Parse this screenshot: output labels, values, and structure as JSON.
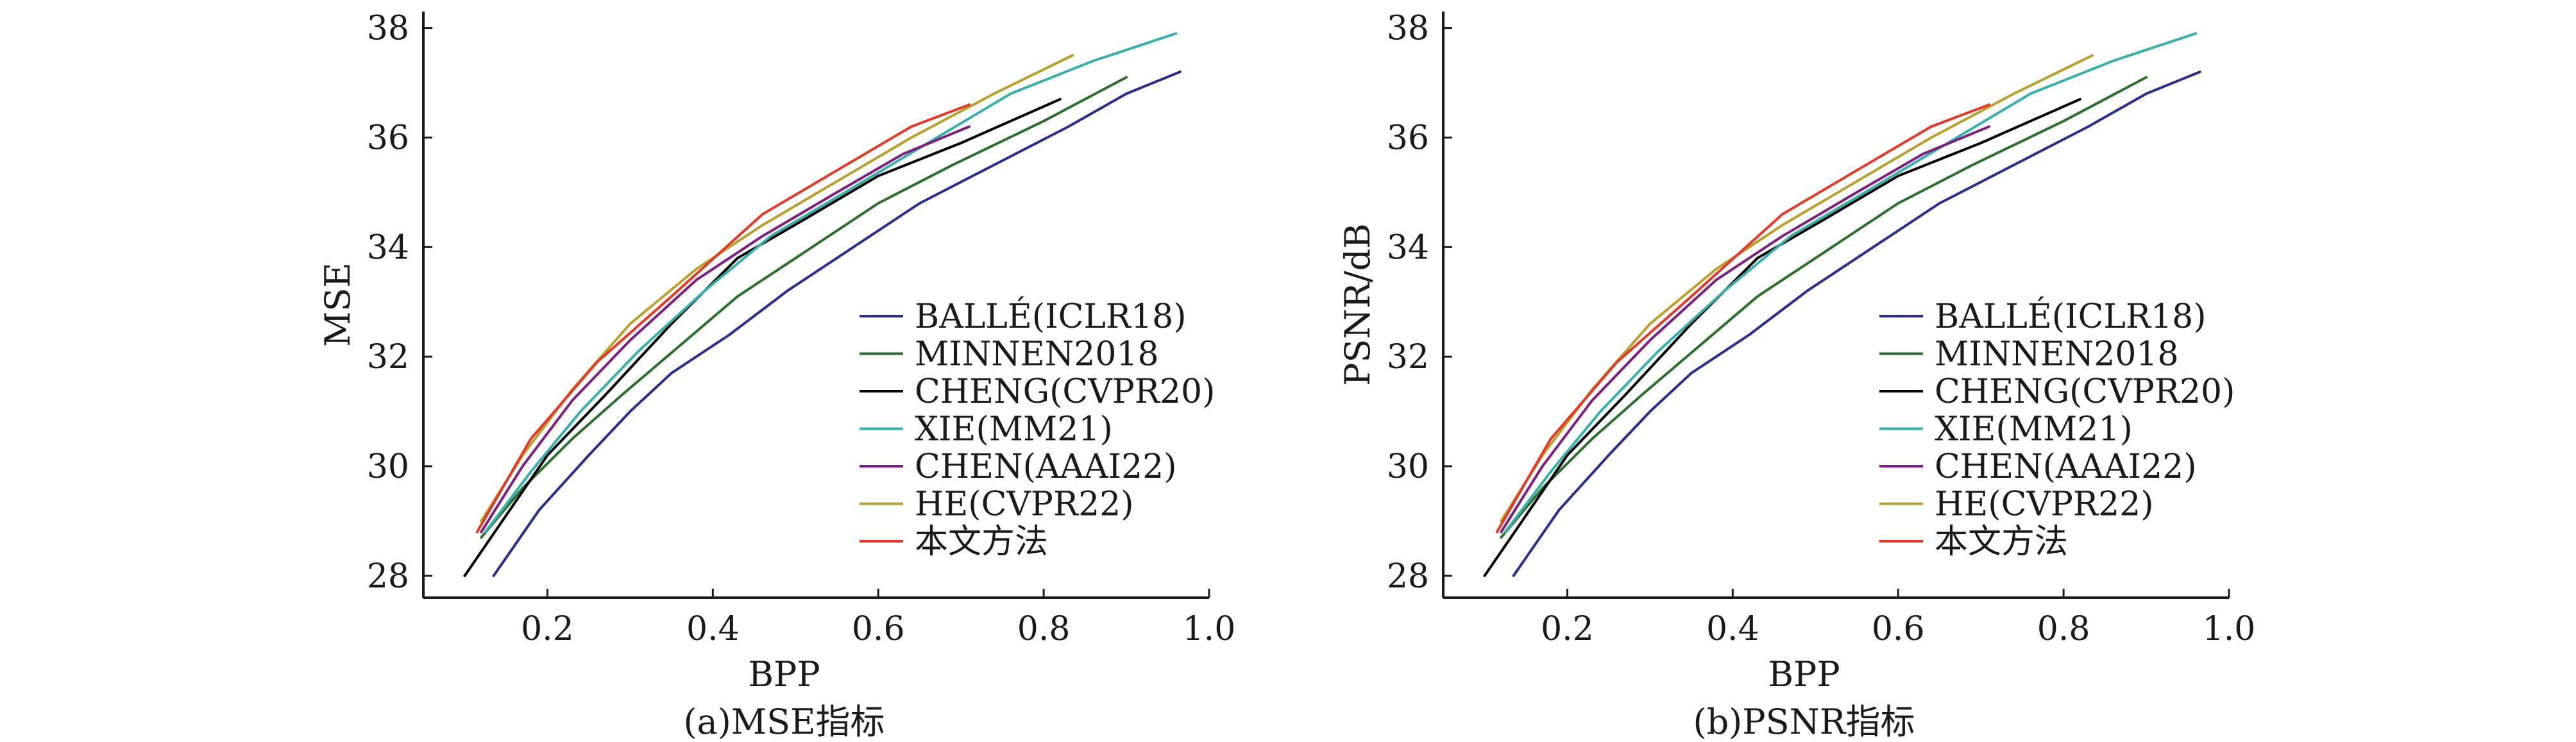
{
  "chart_data": [
    {
      "type": "line",
      "caption": "(a)MSE指标",
      "xlabel": "BPP",
      "ylabel": "MSE",
      "xlim": [
        0.05,
        1.0
      ],
      "ylim": [
        27.6,
        38.3
      ],
      "xticks": [
        0.2,
        0.4,
        0.6,
        0.8,
        1.0
      ],
      "xtick_labels": [
        "0.2",
        "0.4",
        "0.6",
        "0.8",
        "1.0"
      ],
      "yticks": [
        28,
        30,
        32,
        34,
        36,
        38
      ],
      "ytick_labels": [
        "28",
        "30",
        "32",
        "34",
        "36",
        "38"
      ],
      "grid": false,
      "legend_position": "bottom-right",
      "series": [
        {
          "name": "BALLÉ(ICLR18)",
          "color": "#2b2d8c",
          "x": [
            0.135,
            0.19,
            0.25,
            0.3,
            0.35,
            0.42,
            0.49,
            0.57,
            0.65,
            0.74,
            0.83,
            0.9,
            0.965
          ],
          "y": [
            28.0,
            29.2,
            30.2,
            31.0,
            31.7,
            32.4,
            33.2,
            34.0,
            34.8,
            35.5,
            36.2,
            36.8,
            37.2
          ]
        },
        {
          "name": "MINNEN2018",
          "color": "#2d6e2d",
          "x": [
            0.12,
            0.17,
            0.23,
            0.29,
            0.36,
            0.43,
            0.51,
            0.6,
            0.69,
            0.8,
            0.9
          ],
          "y": [
            28.7,
            29.6,
            30.5,
            31.3,
            32.2,
            33.1,
            33.9,
            34.8,
            35.5,
            36.3,
            37.1
          ]
        },
        {
          "name": "CHENG(CVPR20)",
          "color": "#000000",
          "x": [
            0.1,
            0.15,
            0.2,
            0.27,
            0.35,
            0.43,
            0.51,
            0.6,
            0.7,
            0.82
          ],
          "y": [
            28.0,
            29.1,
            30.2,
            31.3,
            32.6,
            33.8,
            34.5,
            35.3,
            35.9,
            36.7
          ]
        },
        {
          "name": "XIE(MM21)",
          "color": "#3aaeaa",
          "x": [
            0.125,
            0.18,
            0.24,
            0.31,
            0.39,
            0.47,
            0.56,
            0.66,
            0.76,
            0.86,
            0.96
          ],
          "y": [
            28.8,
            29.9,
            31.0,
            32.1,
            33.2,
            34.2,
            35.0,
            35.9,
            36.8,
            37.4,
            37.9
          ]
        },
        {
          "name": "CHEN(AAAI22)",
          "color": "#7a2080",
          "x": [
            0.12,
            0.17,
            0.23,
            0.3,
            0.38,
            0.46,
            0.55,
            0.63,
            0.71
          ],
          "y": [
            28.8,
            30.0,
            31.2,
            32.3,
            33.4,
            34.2,
            35.0,
            35.7,
            36.2
          ]
        },
        {
          "name": "HE(CVPR22)",
          "color": "#b8a030",
          "x": [
            0.12,
            0.17,
            0.23,
            0.3,
            0.38,
            0.46,
            0.55,
            0.64,
            0.74,
            0.835
          ],
          "y": [
            29.0,
            30.2,
            31.4,
            32.6,
            33.6,
            34.4,
            35.2,
            36.0,
            36.8,
            37.5
          ]
        },
        {
          "name": "本文方法",
          "color": "#e03a2a",
          "x": [
            0.115,
            0.18,
            0.26,
            0.35,
            0.46,
            0.55,
            0.64,
            0.71
          ],
          "y": [
            28.8,
            30.5,
            31.9,
            33.1,
            34.6,
            35.4,
            36.2,
            36.6
          ]
        }
      ]
    },
    {
      "type": "line",
      "caption": "(b)PSNR指标",
      "xlabel": "BPP",
      "ylabel": "PSNR/dB",
      "xlim": [
        0.05,
        1.0
      ],
      "ylim": [
        27.6,
        38.3
      ],
      "xticks": [
        0.2,
        0.4,
        0.6,
        0.8,
        1.0
      ],
      "xtick_labels": [
        "0.2",
        "0.4",
        "0.6",
        "0.8",
        "1.0"
      ],
      "yticks": [
        28,
        30,
        32,
        34,
        36,
        38
      ],
      "ytick_labels": [
        "28",
        "30",
        "32",
        "34",
        "36",
        "38"
      ],
      "grid": false,
      "legend_position": "bottom-right",
      "series": [
        {
          "name": "BALLÉ(ICLR18)",
          "color": "#2b2d8c",
          "x": [
            0.135,
            0.19,
            0.25,
            0.3,
            0.35,
            0.42,
            0.49,
            0.57,
            0.65,
            0.74,
            0.83,
            0.9,
            0.965
          ],
          "y": [
            28.0,
            29.2,
            30.2,
            31.0,
            31.7,
            32.4,
            33.2,
            34.0,
            34.8,
            35.5,
            36.2,
            36.8,
            37.2
          ]
        },
        {
          "name": "MINNEN2018",
          "color": "#2d6e2d",
          "x": [
            0.12,
            0.17,
            0.23,
            0.29,
            0.36,
            0.43,
            0.51,
            0.6,
            0.69,
            0.8,
            0.9
          ],
          "y": [
            28.7,
            29.6,
            30.5,
            31.3,
            32.2,
            33.1,
            33.9,
            34.8,
            35.5,
            36.3,
            37.1
          ]
        },
        {
          "name": "CHENG(CVPR20)",
          "color": "#000000",
          "x": [
            0.1,
            0.15,
            0.2,
            0.27,
            0.35,
            0.43,
            0.51,
            0.6,
            0.7,
            0.82
          ],
          "y": [
            28.0,
            29.1,
            30.2,
            31.3,
            32.6,
            33.8,
            34.5,
            35.3,
            35.9,
            36.7
          ]
        },
        {
          "name": "XIE(MM21)",
          "color": "#3aaeaa",
          "x": [
            0.125,
            0.18,
            0.24,
            0.31,
            0.39,
            0.47,
            0.56,
            0.66,
            0.76,
            0.86,
            0.96
          ],
          "y": [
            28.8,
            29.9,
            31.0,
            32.1,
            33.2,
            34.2,
            35.0,
            35.9,
            36.8,
            37.4,
            37.9
          ]
        },
        {
          "name": "CHEN(AAAI22)",
          "color": "#7a2080",
          "x": [
            0.12,
            0.17,
            0.23,
            0.3,
            0.38,
            0.46,
            0.55,
            0.63,
            0.71
          ],
          "y": [
            28.8,
            30.0,
            31.2,
            32.3,
            33.4,
            34.2,
            35.0,
            35.7,
            36.2
          ]
        },
        {
          "name": "HE(CVPR22)",
          "color": "#b8a030",
          "x": [
            0.12,
            0.17,
            0.23,
            0.3,
            0.38,
            0.46,
            0.55,
            0.64,
            0.74,
            0.835
          ],
          "y": [
            29.0,
            30.2,
            31.4,
            32.6,
            33.6,
            34.4,
            35.2,
            36.0,
            36.8,
            37.5
          ]
        },
        {
          "name": "本文方法",
          "color": "#e03a2a",
          "x": [
            0.115,
            0.18,
            0.26,
            0.35,
            0.46,
            0.55,
            0.64,
            0.71
          ],
          "y": [
            28.8,
            30.5,
            31.9,
            33.1,
            34.6,
            35.4,
            36.2,
            36.6
          ]
        }
      ]
    }
  ]
}
